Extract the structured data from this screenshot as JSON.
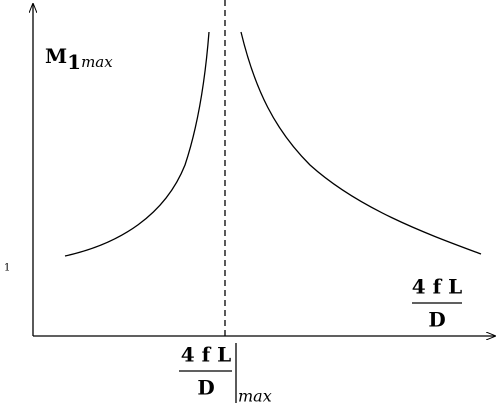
{
  "y_axis": {
    "label": {
      "symbol": "M",
      "subscript": "1",
      "qualifier": "max"
    },
    "tick_label": "1"
  },
  "x_axis": {
    "label": {
      "numerator": "4 f L",
      "denominator": "D"
    }
  },
  "critical_line": {
    "label": {
      "numerator": "4 f L",
      "denominator": "D",
      "qualifier": "max"
    }
  }
}
